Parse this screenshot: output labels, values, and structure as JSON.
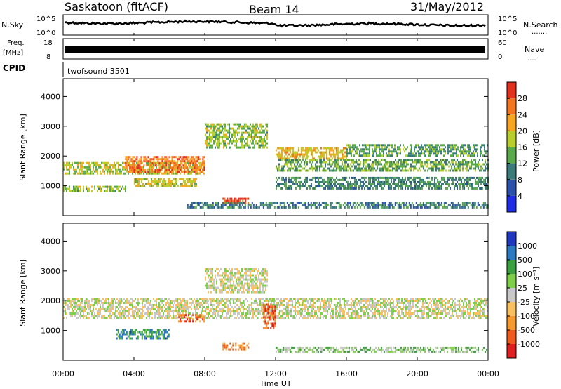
{
  "header": {
    "station": "Saskatoon (fitACF)",
    "beam": "Beam 14",
    "date": "31/May/2012"
  },
  "panels": {
    "nsky": {
      "left_label": "N.Sky",
      "left_ticks": [
        "10^5",
        "10^0"
      ],
      "right_ticks": [
        "10^5",
        "10^0"
      ],
      "right_label": "N.Search",
      "right_dots": "......."
    },
    "freq": {
      "left_label_1": "Freq.",
      "left_label_2": "[MHz]",
      "left_ticks": [
        "18",
        "8"
      ],
      "right_ticks": [
        "60",
        "0"
      ],
      "right_label": "Nave",
      "right_dots": "...."
    },
    "cpid": {
      "left_label": "CPID",
      "text": "twofsound 3501"
    }
  },
  "chart_data": [
    {
      "type": "heatmap",
      "name": "power",
      "ylabel": "Slant Range [km]",
      "y_ticks": [
        "1000",
        "2000",
        "3000",
        "4000"
      ],
      "colorbar_label": "Power [dB]",
      "colorbar_ticks": [
        "4",
        "8",
        "12",
        "16",
        "20",
        "24",
        "28"
      ],
      "colorbar_colors": [
        "#1f2ee6",
        "#2b52a8",
        "#3a7a78",
        "#5aa94a",
        "#b8cf2d",
        "#f5a623",
        "#f27522",
        "#e0301e"
      ],
      "ylim": [
        0,
        4600
      ],
      "xlim_hours": [
        0,
        24
      ],
      "bands": [
        {
          "x": [
            0.0,
            8.0
          ],
          "y": [
            1400,
            1800
          ],
          "level": 0.55
        },
        {
          "x": [
            3.5,
            8.0
          ],
          "y": [
            1500,
            2000
          ],
          "level": 0.8
        },
        {
          "x": [
            0.0,
            3.5
          ],
          "y": [
            800,
            1000
          ],
          "level": 0.5
        },
        {
          "x": [
            4.0,
            7.5
          ],
          "y": [
            1000,
            1250
          ],
          "level": 0.6
        },
        {
          "x": [
            9.0,
            10.5
          ],
          "y": [
            400,
            600
          ],
          "level": 0.95
        },
        {
          "x": [
            8.0,
            11.5
          ],
          "y": [
            2300,
            3100
          ],
          "level": 0.5
        },
        {
          "x": [
            12.0,
            16.0
          ],
          "y": [
            1900,
            2300
          ],
          "level": 0.65
        },
        {
          "x": [
            12.0,
            24.0
          ],
          "y": [
            1500,
            1900
          ],
          "level": 0.45
        },
        {
          "x": [
            16.0,
            24.0
          ],
          "y": [
            2000,
            2400
          ],
          "level": 0.4
        },
        {
          "x": [
            12.0,
            24.0
          ],
          "y": [
            900,
            1300
          ],
          "level": 0.35
        },
        {
          "x": [
            7.0,
            24.0
          ],
          "y": [
            300,
            450
          ],
          "level": 0.3
        }
      ]
    },
    {
      "type": "heatmap",
      "name": "velocity",
      "ylabel": "Slant Range [km]",
      "y_ticks": [
        "1000",
        "2000",
        "3000",
        "4000"
      ],
      "x_ticks": [
        "00:00",
        "04:00",
        "08:00",
        "12:00",
        "16:00",
        "20:00",
        "00:00"
      ],
      "xlabel": "Time UT",
      "colorbar_label": "Velocity [m s⁻¹]",
      "colorbar_ticks": [
        "-1000",
        "-500",
        "-100",
        "-25",
        "25",
        "100",
        "500",
        "1000"
      ],
      "colorbar_colors": [
        "#e02020",
        "#ee5a20",
        "#f59a30",
        "#f8c060",
        "#c8c8c8",
        "#7ed04a",
        "#3aa040",
        "#2b7ac0",
        "#2038c0"
      ],
      "ylim": [
        0,
        4600
      ],
      "xlim_hours": [
        0,
        24
      ],
      "bands": [
        {
          "x": [
            0.0,
            24.0
          ],
          "y": [
            1400,
            2100
          ],
          "level": 0.5
        },
        {
          "x": [
            8.0,
            11.5
          ],
          "y": [
            2300,
            3100
          ],
          "level": 0.5
        },
        {
          "x": [
            3.0,
            6.0
          ],
          "y": [
            700,
            1050
          ],
          "level": 0.75
        },
        {
          "x": [
            9.0,
            10.5
          ],
          "y": [
            350,
            600
          ],
          "level": 0.25
        },
        {
          "x": [
            11.3,
            12.0
          ],
          "y": [
            1100,
            1900
          ],
          "level": 0.15
        },
        {
          "x": [
            6.5,
            8.0
          ],
          "y": [
            1300,
            1550
          ],
          "level": 0.2
        },
        {
          "x": [
            12.0,
            24.0
          ],
          "y": [
            300,
            450
          ],
          "level": 0.6
        }
      ]
    }
  ]
}
